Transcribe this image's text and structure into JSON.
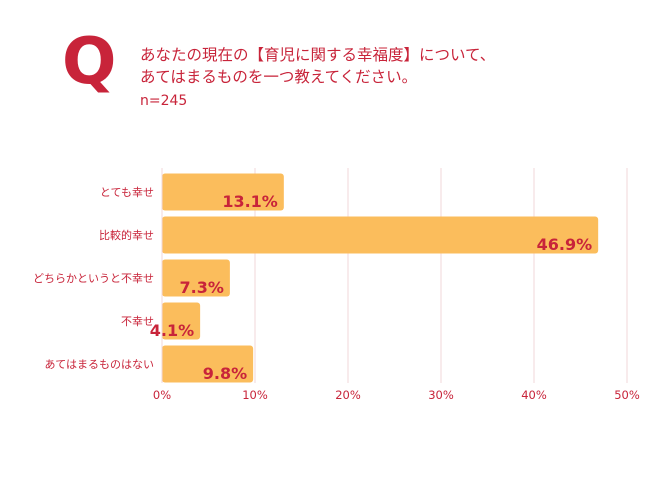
{
  "header": {
    "q_mark": "Q",
    "question_line1": "あなたの現在の【育児に関する幸福度】について、",
    "question_line2": "あてはまるものを一つ教えてください。",
    "sample_size": "n=245"
  },
  "colors": {
    "accent": "#c8243a",
    "bar": "#fbbd5c",
    "grid": "#f2d7da"
  },
  "chart_data": {
    "type": "bar",
    "orientation": "horizontal",
    "categories": [
      "とても幸せ",
      "比較的幸せ",
      "どちらかというと不幸せ",
      "不幸せ",
      "あてはまるものはない"
    ],
    "values": [
      13.1,
      46.9,
      7.3,
      4.1,
      9.8
    ],
    "value_labels": [
      "13.1%",
      "46.9%",
      "7.3%",
      "4.1%",
      "9.8%"
    ],
    "xlim": [
      0,
      50
    ],
    "x_ticks": [
      0,
      10,
      20,
      30,
      40,
      50
    ],
    "x_tick_labels": [
      "0%",
      "10%",
      "20%",
      "30%",
      "40%",
      "50%"
    ],
    "grid": true
  }
}
